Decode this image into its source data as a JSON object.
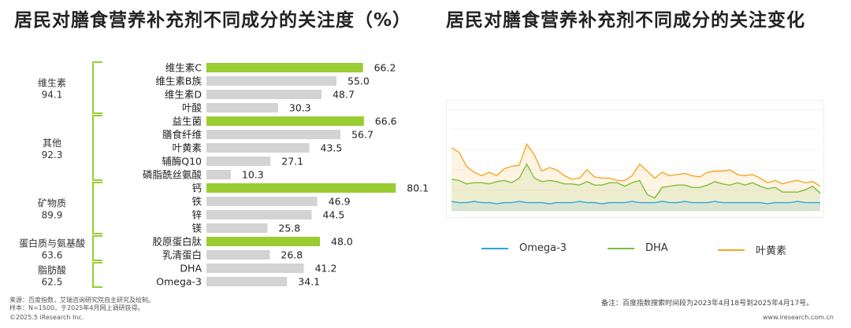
{
  "left_title": "居民对膳食营养补充剂不同成分的关注度（%）",
  "right_title": "居民对膳食营养补充剂不同成分的关注变化",
  "colors": {
    "highlight": "#9ACD32",
    "bar": "#D3D3D3",
    "bracket": "#9ACD32",
    "omega3": "#29A9E0",
    "dha": "#7DBE3C",
    "lutein": "#F5A623"
  },
  "chart_data": [
    {
      "type": "bar",
      "categories": [
        "维生素C",
        "维生素B族",
        "维生素D",
        "叶酸",
        "益生菌",
        "膳食纤维",
        "叶黄素",
        "辅酶Q10",
        "磷脂酰丝氨酸",
        "钙",
        "铁",
        "锌",
        "镁",
        "胶原蛋白肽",
        "乳清蛋白",
        "DHA",
        "Omega-3"
      ],
      "values": [
        66.2,
        55.0,
        48.7,
        30.3,
        66.6,
        56.7,
        43.5,
        27.1,
        10.3,
        80.1,
        46.9,
        44.5,
        25.8,
        48.0,
        26.8,
        41.2,
        34.1
      ],
      "value_labels": [
        "66.2",
        "55.0",
        "48.7",
        "30.3",
        "66.6",
        "56.7",
        "43.5",
        "27.1",
        "10.3",
        "80.1",
        "46.9",
        "44.5",
        "25.8",
        "48.0",
        "26.8",
        "41.2",
        "34.1"
      ],
      "highlighted": [
        true,
        false,
        false,
        false,
        true,
        false,
        false,
        false,
        false,
        true,
        false,
        false,
        false,
        true,
        false,
        false,
        false
      ],
      "groups": [
        {
          "name": "维生素",
          "value": "94.1",
          "start": 0,
          "end": 3
        },
        {
          "name": "其他",
          "value": "92.3",
          "start": 4,
          "end": 8
        },
        {
          "name": "矿物质",
          "value": "89.9",
          "start": 9,
          "end": 12
        },
        {
          "name": "蛋白质与氨基酸",
          "value": "63.6",
          "start": 13,
          "end": 14
        },
        {
          "name": "脂肪酸",
          "value": "62.5",
          "start": 15,
          "end": 16
        }
      ],
      "xlim": [
        0,
        100
      ]
    },
    {
      "type": "line",
      "x_range": [
        "2023-04-18",
        "2025-04-17"
      ],
      "series": [
        {
          "name": "Omega-3",
          "values": [
            8,
            7,
            7,
            8,
            7,
            7,
            6,
            7,
            7,
            8,
            7,
            7,
            7,
            6,
            7,
            7,
            7,
            8,
            7,
            7,
            6,
            7,
            7,
            7,
            8,
            7,
            7,
            7,
            8,
            7,
            7,
            8,
            7,
            7,
            7,
            8,
            7,
            7,
            7,
            7,
            7,
            7,
            6,
            7,
            7,
            7,
            8,
            7,
            7,
            7
          ]
        },
        {
          "name": "DHA",
          "values": [
            27,
            26,
            23,
            24,
            24,
            23,
            25,
            26,
            24,
            28,
            40,
            28,
            25,
            26,
            25,
            23,
            23,
            22,
            25,
            22,
            22,
            24,
            24,
            21,
            24,
            26,
            14,
            11,
            20,
            21,
            22,
            22,
            20,
            20,
            22,
            25,
            23,
            22,
            24,
            22,
            24,
            21,
            19,
            20,
            16,
            16,
            16,
            18,
            21,
            15
          ]
        },
        {
          "name": "叶黄素",
          "values": [
            54,
            50,
            38,
            33,
            30,
            33,
            30,
            36,
            38,
            39,
            57,
            48,
            34,
            37,
            35,
            30,
            27,
            28,
            35,
            29,
            28,
            28,
            26,
            26,
            30,
            40,
            34,
            28,
            33,
            30,
            31,
            32,
            30,
            29,
            33,
            34,
            34,
            35,
            31,
            30,
            31,
            28,
            24,
            26,
            23,
            25,
            26,
            24,
            25,
            21
          ]
        }
      ],
      "ylim": [
        0,
        70
      ]
    }
  ],
  "legend": [
    "Omega-3",
    "DHA",
    "叶黄素"
  ],
  "footnotes": {
    "source": "来源：百度指数，艾瑞咨询研究院自主研究及绘制。",
    "sample": "样本：N=1500，于2025年4月网上调研获得。",
    "copyright": "©2025.5 iResearch Inc.",
    "note": "备注：百度指数搜索时间段为2023年4月18号到2025年4月17号。",
    "website": "www.iresearch.com.cn"
  }
}
